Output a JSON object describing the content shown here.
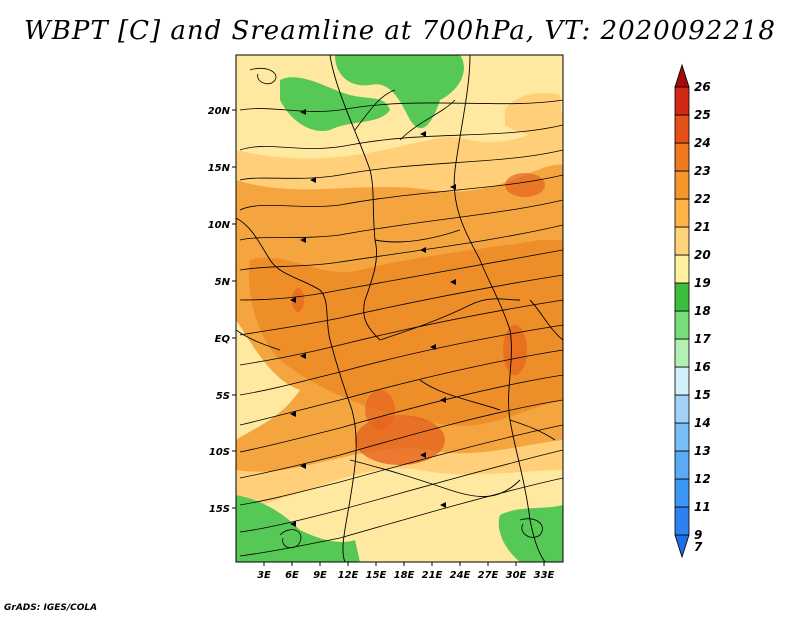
{
  "title": "WBPT [C] and Sreamline at 700hPa, VT: 2020092218",
  "credit": "GrADS: IGES/COLA",
  "map": {
    "lat_ticks": [
      "20N",
      "15N",
      "10N",
      "5N",
      "EQ",
      "5S",
      "10S",
      "15S"
    ],
    "lon_ticks": [
      "3E",
      "6E",
      "9E",
      "12E",
      "15E",
      "18E",
      "21E",
      "24E",
      "27E",
      "30E",
      "33E"
    ]
  },
  "colorbar": {
    "labels": [
      "7",
      "9",
      "11",
      "12",
      "13",
      "14",
      "15",
      "16",
      "17",
      "18",
      "19",
      "20",
      "21",
      "22",
      "23",
      "24",
      "25",
      "26"
    ],
    "colors": [
      "#1e6ee6",
      "#2d82f0",
      "#3c96f5",
      "#5aaaf5",
      "#78bef8",
      "#a0d2fa",
      "#d2f0fa",
      "#b4f0b4",
      "#78dc78",
      "#3cbe3c",
      "#fff0a0",
      "#ffd278",
      "#ffb446",
      "#f5962d",
      "#f0781e",
      "#e65014",
      "#d22814",
      "#a50a0a"
    ]
  },
  "legend_colors": {
    "yellow": "#ffe8a0",
    "light_orange": "#ffcf7a",
    "orange": "#f5a540",
    "dark_orange": "#ec8a26",
    "red_orange": "#e6641e",
    "green": "#55c855",
    "light_green": "#9be39b"
  }
}
